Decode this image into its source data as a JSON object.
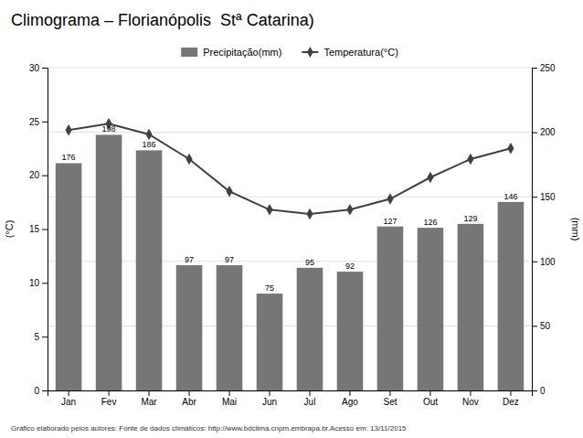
{
  "chart_data": {
    "type": "bar",
    "title": "Climograma – Florianópolis  Stª Catarina)",
    "subtitle": "Gráfico elaborado pelos autores: Fonte de dados climáticos: http://www.bdclima.cnpm.embrapa.br.Acesso em: 13/11/2015",
    "categories": [
      "Jan",
      "Fev",
      "Mar",
      "Abr",
      "Mai",
      "Jun",
      "Jul",
      "Ago",
      "Set",
      "Out",
      "Nov",
      "Dez"
    ],
    "series": [
      {
        "name": "Precipitação(mm)",
        "type": "bar",
        "axis": "y2",
        "color": "#767676",
        "data_labels": true,
        "values": [
          176,
          198,
          186,
          97,
          97,
          75,
          95,
          92,
          127,
          126,
          129,
          146
        ]
      },
      {
        "name": "Temperatura(°C)",
        "type": "line",
        "axis": "y",
        "color": "#404040",
        "marker": "diamond",
        "line_style": "solid",
        "values": [
          24.2,
          24.8,
          23.8,
          21.5,
          18.5,
          16.8,
          16.4,
          16.8,
          17.8,
          19.8,
          21.5,
          22.5
        ]
      }
    ],
    "ylabel": "(°C)",
    "y2label": "(mm)",
    "ylim": [
      0,
      30
    ],
    "yticks": [
      0,
      5,
      10,
      15,
      20,
      25,
      30
    ],
    "y2lim": [
      0,
      250
    ],
    "y2ticks": [
      0,
      50,
      100,
      150,
      200,
      250
    ],
    "grid": true,
    "legend": "top"
  }
}
